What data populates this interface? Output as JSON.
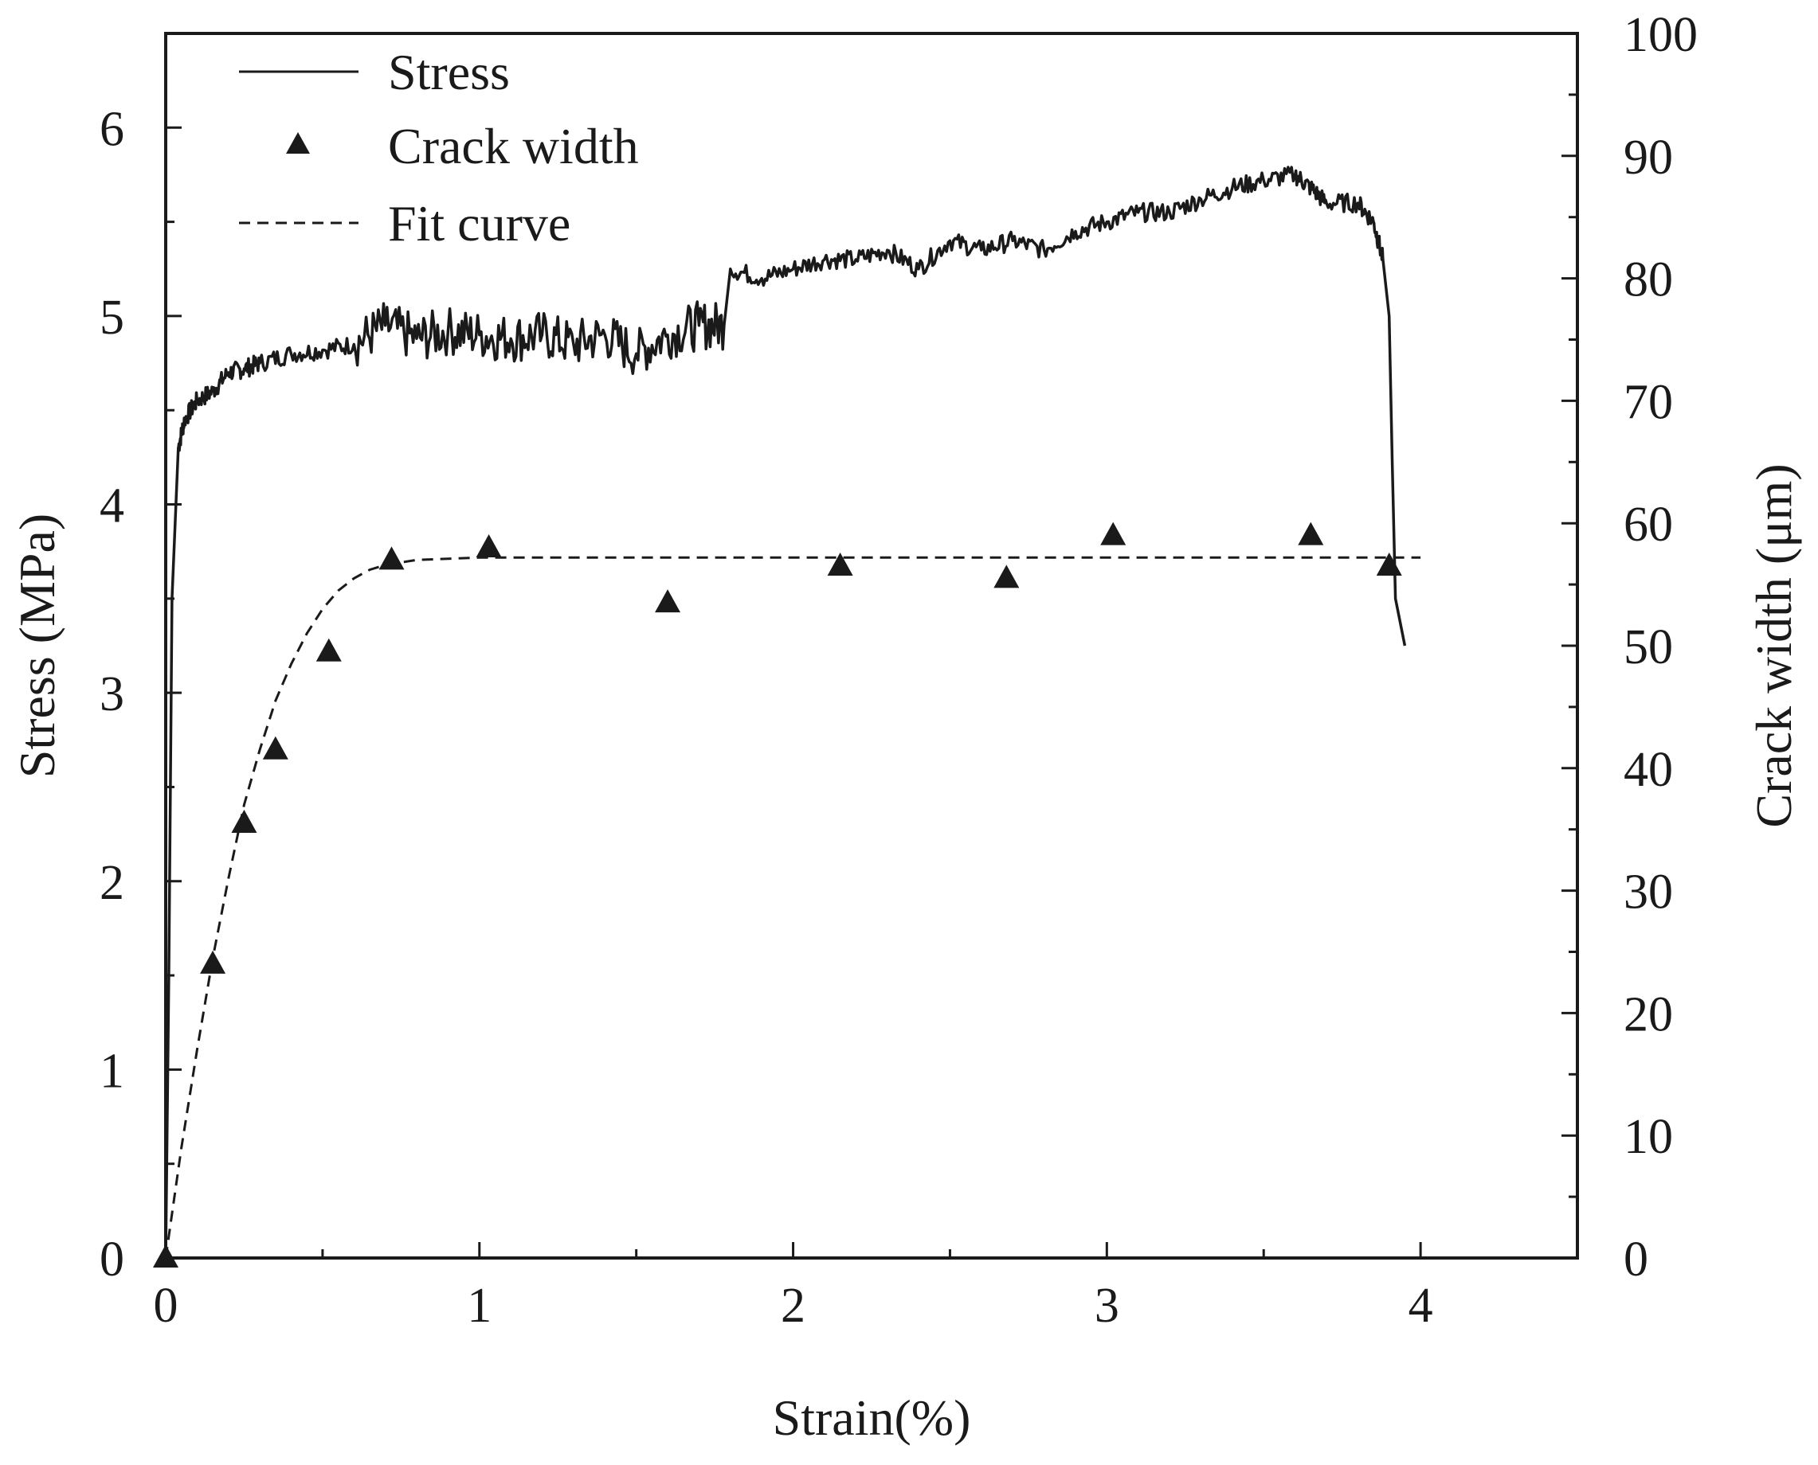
{
  "chart_data": {
    "type": "line",
    "title": "",
    "xlabel": "Strain(%)",
    "ylabel": "Stress (MPa)",
    "y2label": "Crack width (μm)",
    "xlim": [
      0,
      4.5
    ],
    "ylim": [
      0,
      6.5
    ],
    "y2lim": [
      0,
      100
    ],
    "xticks": [
      0,
      1,
      2,
      3,
      4
    ],
    "xticklabels": [
      "0",
      "1",
      "2",
      "3",
      "4"
    ],
    "yticks": [
      0,
      1,
      2,
      3,
      4,
      5,
      6
    ],
    "yticklabels": [
      "0",
      "1",
      "2",
      "3",
      "4",
      "5",
      "6"
    ],
    "y2ticks": [
      0,
      10,
      20,
      30,
      40,
      50,
      60,
      70,
      80,
      90,
      100
    ],
    "y2ticklabels": [
      "0",
      "10",
      "20",
      "30",
      "40",
      "50",
      "60",
      "70",
      "80",
      "90",
      "100"
    ],
    "legend_position": "top-left",
    "series": [
      {
        "name": "Stress",
        "axis": "left",
        "style": "solid",
        "color": "#1a1a1a",
        "x": [
          0,
          0.01,
          0.02,
          0.04,
          0.06,
          0.1,
          0.15,
          0.2,
          0.25,
          0.3,
          0.4,
          0.5,
          0.6,
          0.7,
          0.8,
          0.9,
          1.0,
          1.1,
          1.2,
          1.3,
          1.4,
          1.5,
          1.6,
          1.7,
          1.78,
          1.8,
          1.9,
          2.0,
          2.1,
          2.2,
          2.3,
          2.4,
          2.5,
          2.6,
          2.7,
          2.8,
          2.9,
          3.0,
          3.1,
          3.2,
          3.3,
          3.4,
          3.5,
          3.6,
          3.65,
          3.7,
          3.8,
          3.85,
          3.88,
          3.9,
          3.91,
          3.92,
          3.95
        ],
        "y": [
          0,
          1.5,
          3.5,
          4.3,
          4.45,
          4.55,
          4.6,
          4.7,
          4.72,
          4.75,
          4.8,
          4.82,
          4.85,
          4.95,
          4.88,
          4.92,
          4.9,
          4.88,
          4.9,
          4.85,
          4.9,
          4.8,
          4.9,
          4.95,
          4.95,
          5.25,
          5.2,
          5.25,
          5.3,
          5.3,
          5.35,
          5.25,
          5.4,
          5.35,
          5.4,
          5.35,
          5.45,
          5.5,
          5.55,
          5.55,
          5.62,
          5.68,
          5.72,
          5.75,
          5.68,
          5.6,
          5.6,
          5.5,
          5.3,
          5.0,
          4.2,
          3.5,
          3.25
        ]
      },
      {
        "name": "Crack width",
        "axis": "right",
        "style": "markers",
        "marker": "triangle",
        "color": "#1a1a1a",
        "x": [
          0,
          0.15,
          0.25,
          0.35,
          0.52,
          0.72,
          1.03,
          1.6,
          2.15,
          2.68,
          3.02,
          3.65,
          3.9
        ],
        "y": [
          0,
          24,
          35.5,
          41.5,
          49.5,
          57,
          58,
          53.5,
          56.5,
          55.5,
          59,
          59,
          56.5
        ]
      },
      {
        "name": "Fit curve",
        "axis": "right",
        "style": "dashed",
        "color": "#1a1a1a",
        "x": [
          0,
          0.05,
          0.1,
          0.15,
          0.2,
          0.25,
          0.3,
          0.35,
          0.4,
          0.45,
          0.5,
          0.55,
          0.6,
          0.65,
          0.7,
          0.8,
          0.9,
          1.0,
          1.2,
          1.5,
          2.0,
          2.5,
          3.0,
          3.5,
          4.0
        ],
        "y": [
          0,
          9,
          17,
          24.5,
          31,
          37,
          41.5,
          45.5,
          48.5,
          51,
          53,
          54.5,
          55.5,
          56.2,
          56.6,
          57,
          57.1,
          57.2,
          57.2,
          57.2,
          57.2,
          57.2,
          57.2,
          57.2,
          57.2
        ]
      }
    ]
  }
}
